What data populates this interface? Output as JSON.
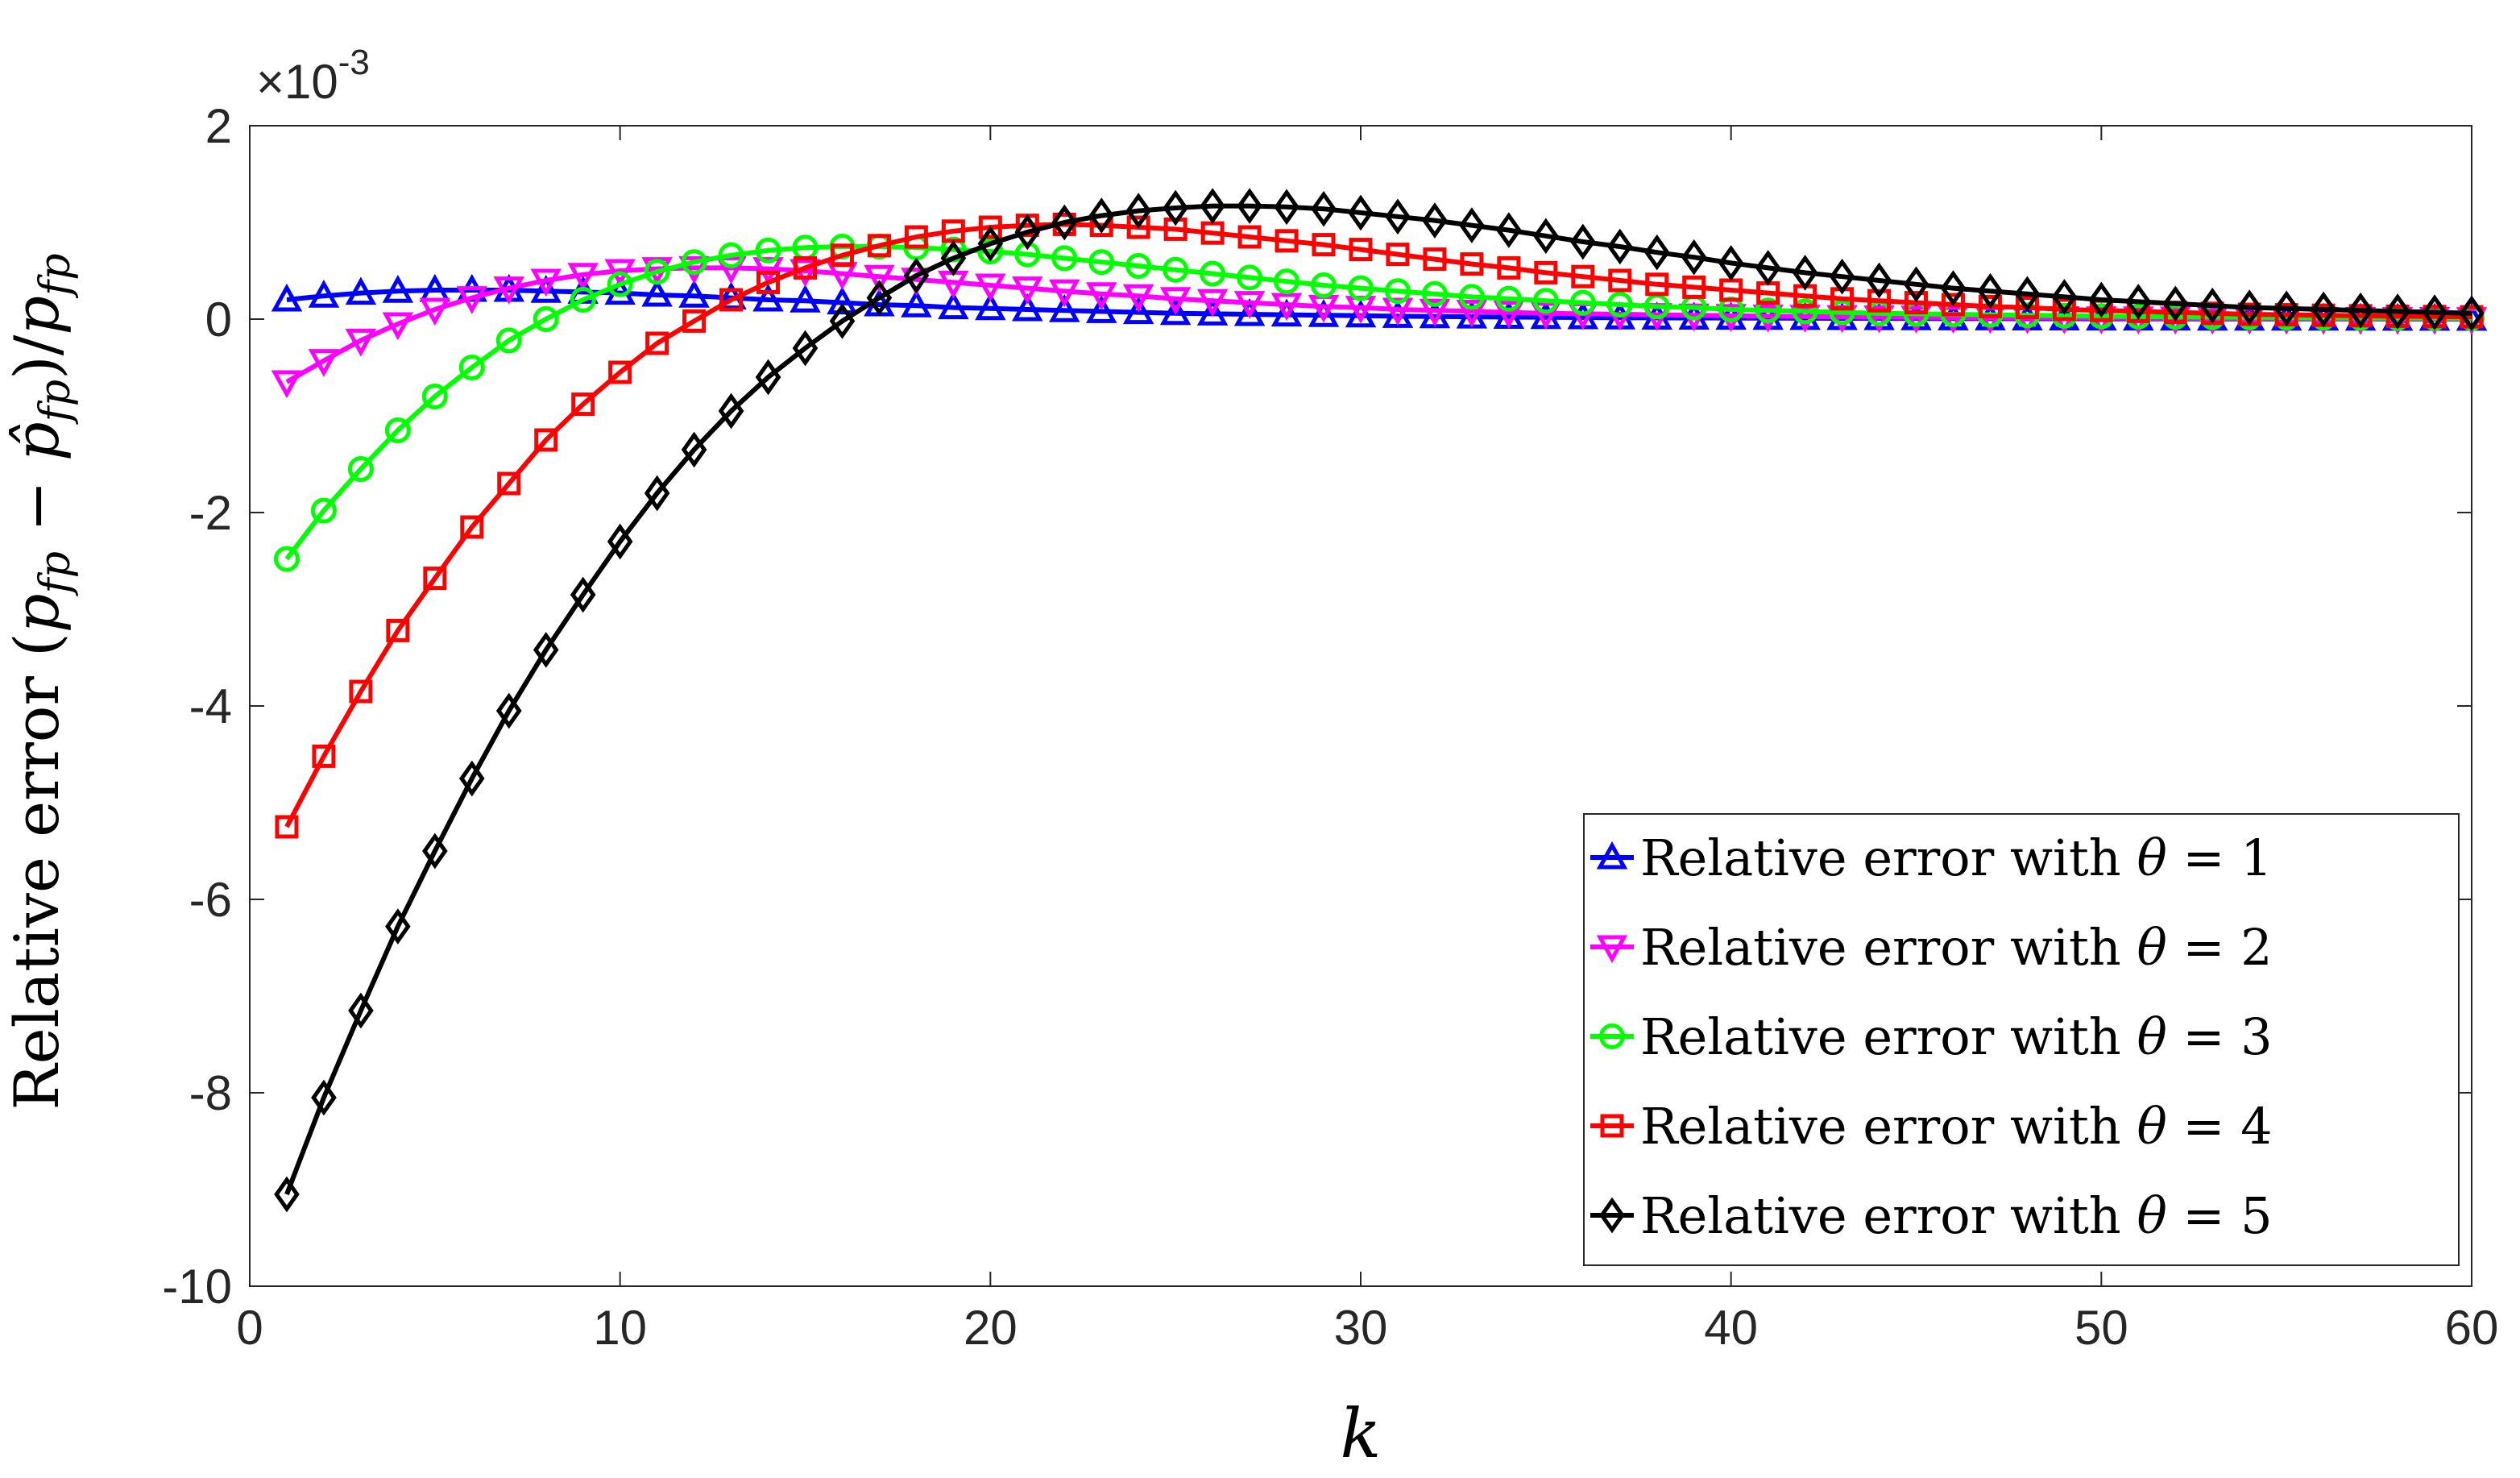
{
  "chart_data": {
    "type": "line",
    "title": "",
    "xlabel": "k",
    "ylabel": "Relative error (p_fp − p̂_fp)/p_fp",
    "ylabel_parts": {
      "prefix": "Relative error ",
      "open": "(",
      "p": "p",
      "sub": "fp",
      "minus": " − ",
      "hat": "p̂",
      "close": ")/",
      "p2": "p",
      "sub2": "fp"
    },
    "y_exponent": {
      "prefix": "×10",
      "power": "-3"
    },
    "xlim": [
      0,
      60
    ],
    "ylim": [
      -10,
      2
    ],
    "xticks": [
      0,
      10,
      20,
      30,
      40,
      50,
      60
    ],
    "xtick_labels": [
      "0",
      "10",
      "20",
      "30",
      "40",
      "50",
      "60"
    ],
    "yticks": [
      2,
      0,
      -2,
      -4,
      -6,
      -8,
      -10
    ],
    "ytick_labels": [
      "2",
      "0",
      "-2",
      "-4",
      "-6",
      "-8",
      "-10"
    ],
    "grid": false,
    "legend_position": "bottom-right",
    "series": [
      {
        "name": "Relative error with θ = 1",
        "legend_label": {
          "prefix": "Relative error with ",
          "symbol": "θ",
          "suffix": " = 1"
        },
        "color": "#0000ff",
        "marker": "triangle-up",
        "values": [
          0.2,
          0.24,
          0.27,
          0.29,
          0.3,
          0.3,
          0.3,
          0.29,
          0.28,
          0.27,
          0.25,
          0.24,
          0.22,
          0.2,
          0.19,
          0.17,
          0.15,
          0.14,
          0.12,
          0.11,
          0.1,
          0.09,
          0.08,
          0.07,
          0.06,
          0.055,
          0.05,
          0.045,
          0.04,
          0.035,
          0.03,
          0.027,
          0.024,
          0.021,
          0.019,
          0.017,
          0.015,
          0.013,
          0.012,
          0.011,
          0.01,
          0.009,
          0.008,
          0.007,
          0.006,
          0.005,
          0.005,
          0.004,
          0.004,
          0.003,
          0.003,
          0.003,
          0.002,
          0.002,
          0.002,
          0.002,
          0.002,
          0.001,
          0.001,
          0.001
        ]
      },
      {
        "name": "Relative error with θ = 2",
        "legend_label": {
          "prefix": "Relative error with ",
          "symbol": "θ",
          "suffix": " = 2"
        },
        "color": "#ff00ff",
        "marker": "triangle-down",
        "values": [
          -0.65,
          -0.43,
          -0.22,
          -0.05,
          0.1,
          0.22,
          0.32,
          0.4,
          0.46,
          0.5,
          0.52,
          0.53,
          0.53,
          0.52,
          0.5,
          0.47,
          0.44,
          0.41,
          0.38,
          0.35,
          0.32,
          0.29,
          0.26,
          0.24,
          0.21,
          0.19,
          0.17,
          0.15,
          0.13,
          0.12,
          0.1,
          0.09,
          0.08,
          0.07,
          0.06,
          0.055,
          0.05,
          0.045,
          0.04,
          0.035,
          0.03,
          0.027,
          0.024,
          0.021,
          0.019,
          0.017,
          0.015,
          0.013,
          0.012,
          0.011,
          0.01,
          0.009,
          0.008,
          0.007,
          0.006,
          0.005,
          0.005,
          0.004,
          0.004,
          0.003
        ]
      },
      {
        "name": "Relative error with θ = 3",
        "legend_label": {
          "prefix": "Relative error with ",
          "symbol": "θ",
          "suffix": " = 3"
        },
        "color": "#00ff00",
        "marker": "circle",
        "values": [
          -2.48,
          -1.98,
          -1.55,
          -1.15,
          -0.8,
          -0.5,
          -0.22,
          0.0,
          0.2,
          0.36,
          0.49,
          0.59,
          0.66,
          0.71,
          0.74,
          0.75,
          0.75,
          0.74,
          0.72,
          0.7,
          0.67,
          0.63,
          0.59,
          0.55,
          0.51,
          0.47,
          0.43,
          0.39,
          0.35,
          0.32,
          0.29,
          0.26,
          0.23,
          0.21,
          0.19,
          0.17,
          0.15,
          0.13,
          0.12,
          0.1,
          0.09,
          0.08,
          0.07,
          0.06,
          0.055,
          0.05,
          0.045,
          0.04,
          0.035,
          0.03,
          0.027,
          0.024,
          0.021,
          0.019,
          0.017,
          0.015,
          0.013,
          0.012,
          0.011,
          0.01
        ]
      },
      {
        "name": "Relative error with θ = 4",
        "legend_label": {
          "prefix": "Relative error with ",
          "symbol": "θ",
          "suffix": " = 4"
        },
        "color": "#ff0000",
        "marker": "square",
        "values": [
          -5.25,
          -4.52,
          -3.85,
          -3.22,
          -2.68,
          -2.15,
          -1.7,
          -1.25,
          -0.88,
          -0.55,
          -0.25,
          -0.02,
          0.2,
          0.38,
          0.53,
          0.66,
          0.76,
          0.85,
          0.91,
          0.95,
          0.97,
          0.98,
          0.97,
          0.95,
          0.93,
          0.89,
          0.85,
          0.81,
          0.77,
          0.72,
          0.67,
          0.62,
          0.57,
          0.53,
          0.48,
          0.44,
          0.4,
          0.36,
          0.33,
          0.3,
          0.27,
          0.24,
          0.21,
          0.19,
          0.17,
          0.15,
          0.13,
          0.12,
          0.1,
          0.09,
          0.08,
          0.07,
          0.06,
          0.05,
          0.045,
          0.04,
          0.035,
          0.03,
          0.027,
          0.024
        ]
      },
      {
        "name": "Relative error with θ = 5",
        "legend_label": {
          "prefix": "Relative error with ",
          "symbol": "θ",
          "suffix": " = 5"
        },
        "color": "#000000",
        "marker": "diamond",
        "values": [
          -9.05,
          -8.05,
          -7.15,
          -6.28,
          -5.5,
          -4.75,
          -4.05,
          -3.42,
          -2.85,
          -2.3,
          -1.8,
          -1.35,
          -0.95,
          -0.6,
          -0.3,
          -0.02,
          0.22,
          0.45,
          0.63,
          0.78,
          0.9,
          1.0,
          1.07,
          1.12,
          1.15,
          1.17,
          1.17,
          1.16,
          1.14,
          1.1,
          1.06,
          1.02,
          0.97,
          0.92,
          0.86,
          0.8,
          0.75,
          0.69,
          0.64,
          0.58,
          0.53,
          0.48,
          0.44,
          0.4,
          0.36,
          0.32,
          0.29,
          0.26,
          0.23,
          0.2,
          0.18,
          0.16,
          0.14,
          0.12,
          0.11,
          0.1,
          0.09,
          0.08,
          0.07,
          0.06
        ]
      }
    ]
  }
}
